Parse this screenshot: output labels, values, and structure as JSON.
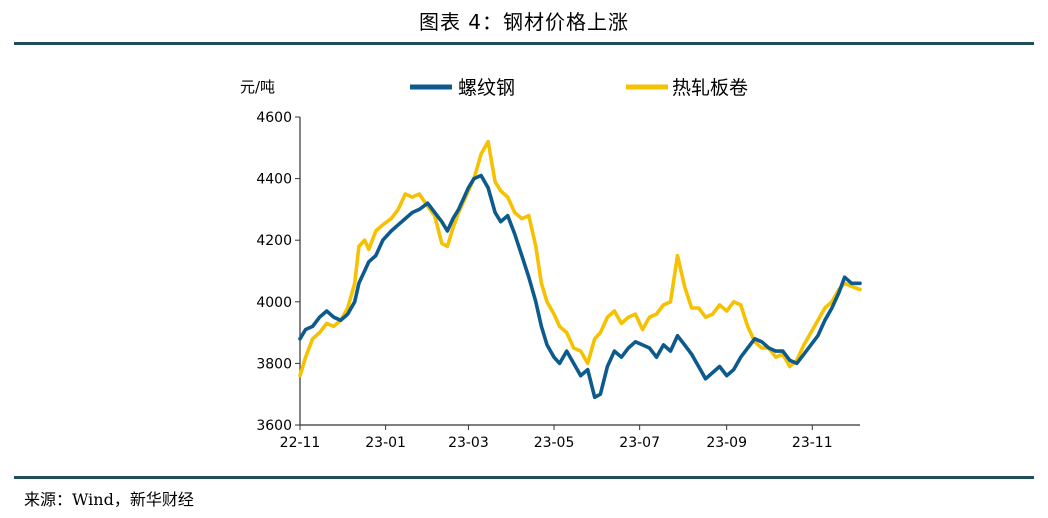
{
  "figure": {
    "title": "图表 4：钢材价格上涨",
    "source": "来源：Wind，新华财经"
  },
  "colors": {
    "rebar": "#0d5a8c",
    "hot_rolled": "#f5c100",
    "axis": "#333333"
  },
  "chart_data": {
    "type": "line",
    "title": "",
    "xlabel": "",
    "ylabel": "元/吨",
    "ylim": [
      3600,
      4600
    ],
    "yticks": [
      3600,
      3800,
      4000,
      4200,
      4400,
      4600
    ],
    "xlim": [
      "2022-11-01",
      "2023-12-05"
    ],
    "xticks": [
      {
        "date": "2022-11-01",
        "label": "22-11"
      },
      {
        "date": "2023-01-01",
        "label": "23-01"
      },
      {
        "date": "2023-03-01",
        "label": "23-03"
      },
      {
        "date": "2023-05-01",
        "label": "23-05"
      },
      {
        "date": "2023-07-01",
        "label": "23-07"
      },
      {
        "date": "2023-09-01",
        "label": "23-09"
      },
      {
        "date": "2023-11-01",
        "label": "23-11"
      }
    ],
    "grid": false,
    "legend": "top",
    "series": [
      {
        "name": "螺纹钢",
        "x": [
          "2022-11-01",
          "2022-11-05",
          "2022-11-10",
          "2022-11-15",
          "2022-11-20",
          "2022-11-25",
          "2022-11-30",
          "2022-12-05",
          "2022-12-10",
          "2022-12-13",
          "2022-12-17",
          "2022-12-20",
          "2022-12-25",
          "2022-12-30",
          "2023-01-05",
          "2023-01-10",
          "2023-01-15",
          "2023-01-20",
          "2023-01-25",
          "2023-01-31",
          "2023-02-05",
          "2023-02-10",
          "2023-02-14",
          "2023-02-18",
          "2023-02-22",
          "2023-02-26",
          "2023-03-01",
          "2023-03-05",
          "2023-03-10",
          "2023-03-15",
          "2023-03-20",
          "2023-03-24",
          "2023-03-29",
          "2023-04-03",
          "2023-04-08",
          "2023-04-13",
          "2023-04-18",
          "2023-04-22",
          "2023-04-26",
          "2023-05-01",
          "2023-05-05",
          "2023-05-10",
          "2023-05-15",
          "2023-05-20",
          "2023-05-25",
          "2023-05-30",
          "2023-06-03",
          "2023-06-08",
          "2023-06-13",
          "2023-06-18",
          "2023-06-23",
          "2023-06-28",
          "2023-07-03",
          "2023-07-08",
          "2023-07-13",
          "2023-07-18",
          "2023-07-23",
          "2023-07-28",
          "2023-08-02",
          "2023-08-07",
          "2023-08-12",
          "2023-08-17",
          "2023-08-22",
          "2023-08-27",
          "2023-09-01",
          "2023-09-06",
          "2023-09-11",
          "2023-09-16",
          "2023-09-21",
          "2023-09-26",
          "2023-10-01",
          "2023-10-06",
          "2023-10-11",
          "2023-10-16",
          "2023-10-21",
          "2023-10-26",
          "2023-10-31",
          "2023-11-05",
          "2023-11-10",
          "2023-11-15",
          "2023-11-20",
          "2023-11-24",
          "2023-11-29",
          "2023-12-05"
        ],
        "values": [
          3880,
          3910,
          3920,
          3950,
          3970,
          3950,
          3940,
          3960,
          4000,
          4060,
          4100,
          4130,
          4150,
          4200,
          4230,
          4250,
          4270,
          4290,
          4300,
          4320,
          4290,
          4260,
          4230,
          4270,
          4300,
          4340,
          4370,
          4400,
          4410,
          4370,
          4290,
          4260,
          4280,
          4220,
          4150,
          4080,
          4000,
          3920,
          3860,
          3820,
          3800,
          3840,
          3800,
          3760,
          3780,
          3690,
          3700,
          3790,
          3840,
          3820,
          3850,
          3870,
          3860,
          3850,
          3820,
          3860,
          3840,
          3890,
          3860,
          3830,
          3790,
          3750,
          3770,
          3790,
          3760,
          3780,
          3820,
          3850,
          3880,
          3870,
          3850,
          3840,
          3840,
          3810,
          3800,
          3830,
          3860,
          3890,
          3940,
          3980,
          4030,
          4080,
          4060,
          4060
        ]
      },
      {
        "name": "热轧板卷",
        "x": [
          "2022-11-01",
          "2022-11-05",
          "2022-11-10",
          "2022-11-15",
          "2022-11-20",
          "2022-11-25",
          "2022-11-30",
          "2022-12-05",
          "2022-12-10",
          "2022-12-13",
          "2022-12-17",
          "2022-12-20",
          "2022-12-25",
          "2022-12-30",
          "2023-01-05",
          "2023-01-10",
          "2023-01-15",
          "2023-01-20",
          "2023-01-25",
          "2023-01-31",
          "2023-02-05",
          "2023-02-10",
          "2023-02-14",
          "2023-02-18",
          "2023-02-22",
          "2023-02-26",
          "2023-03-01",
          "2023-03-05",
          "2023-03-10",
          "2023-03-15",
          "2023-03-20",
          "2023-03-24",
          "2023-03-29",
          "2023-04-03",
          "2023-04-08",
          "2023-04-13",
          "2023-04-18",
          "2023-04-22",
          "2023-04-26",
          "2023-05-01",
          "2023-05-05",
          "2023-05-10",
          "2023-05-15",
          "2023-05-20",
          "2023-05-25",
          "2023-05-30",
          "2023-06-03",
          "2023-06-08",
          "2023-06-13",
          "2023-06-18",
          "2023-06-23",
          "2023-06-28",
          "2023-07-03",
          "2023-07-08",
          "2023-07-13",
          "2023-07-18",
          "2023-07-23",
          "2023-07-28",
          "2023-08-02",
          "2023-08-07",
          "2023-08-12",
          "2023-08-17",
          "2023-08-22",
          "2023-08-27",
          "2023-09-01",
          "2023-09-06",
          "2023-09-11",
          "2023-09-16",
          "2023-09-21",
          "2023-09-26",
          "2023-10-01",
          "2023-10-06",
          "2023-10-11",
          "2023-10-16",
          "2023-10-21",
          "2023-10-26",
          "2023-10-31",
          "2023-11-05",
          "2023-11-10",
          "2023-11-15",
          "2023-11-20",
          "2023-11-24",
          "2023-11-29",
          "2023-12-05"
        ],
        "values": [
          3760,
          3820,
          3880,
          3900,
          3930,
          3920,
          3940,
          3980,
          4060,
          4180,
          4200,
          4170,
          4230,
          4250,
          4270,
          4300,
          4350,
          4340,
          4350,
          4310,
          4280,
          4190,
          4180,
          4240,
          4290,
          4330,
          4360,
          4400,
          4480,
          4520,
          4390,
          4360,
          4340,
          4290,
          4270,
          4280,
          4180,
          4060,
          4000,
          3960,
          3920,
          3900,
          3850,
          3840,
          3800,
          3880,
          3900,
          3950,
          3970,
          3930,
          3950,
          3960,
          3910,
          3950,
          3960,
          3990,
          4000,
          4150,
          4050,
          3980,
          3980,
          3950,
          3960,
          3990,
          3970,
          4000,
          3990,
          3920,
          3870,
          3850,
          3850,
          3820,
          3830,
          3790,
          3810,
          3860,
          3900,
          3940,
          3980,
          4000,
          4040,
          4060,
          4050,
          4040
        ]
      }
    ]
  }
}
